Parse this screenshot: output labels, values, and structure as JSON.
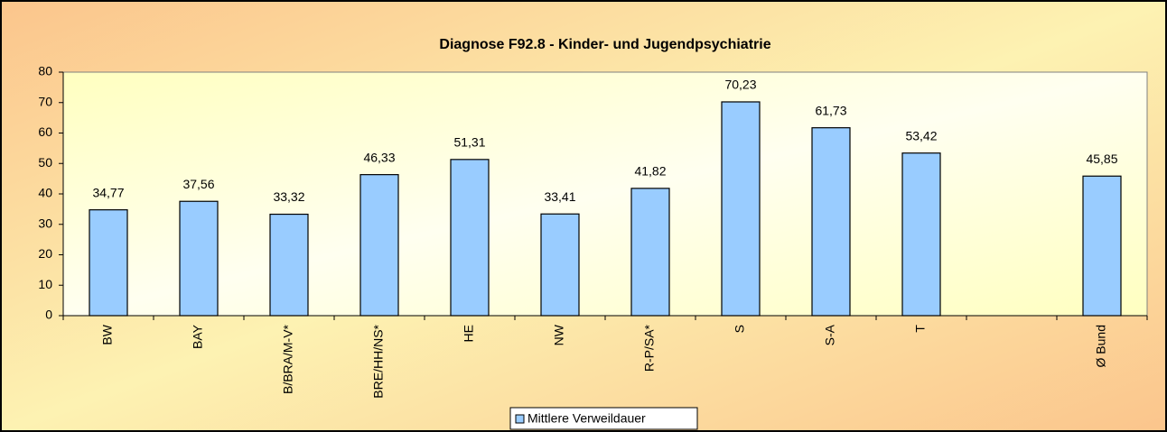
{
  "chart_data": {
    "type": "bar",
    "title": "Diagnose F92.8 - Kinder- und Jugendpsychiatrie",
    "categories": [
      "BW",
      "BAY",
      "B/BRA/M-V*",
      "BRE/HH/NS*",
      "HE",
      "NW",
      "R-P/SA*",
      "S",
      "S-A",
      "T",
      null,
      "Ø Bund"
    ],
    "series": [
      {
        "name": "Mittlere Verweildauer",
        "color": "#99ccff",
        "values": [
          34.77,
          37.56,
          33.32,
          46.33,
          51.31,
          33.41,
          41.82,
          70.23,
          61.73,
          53.42,
          null,
          45.85
        ],
        "value_labels": [
          "34,77",
          "37,56",
          "33,32",
          "46,33",
          "51,31",
          "33,41",
          "41,82",
          "70,23",
          "61,73",
          "53,42",
          null,
          "45,85"
        ]
      }
    ],
    "ylim": [
      0,
      80
    ],
    "yticks": [
      0,
      10,
      20,
      30,
      40,
      50,
      60,
      70,
      80
    ],
    "legend": "bottom"
  }
}
